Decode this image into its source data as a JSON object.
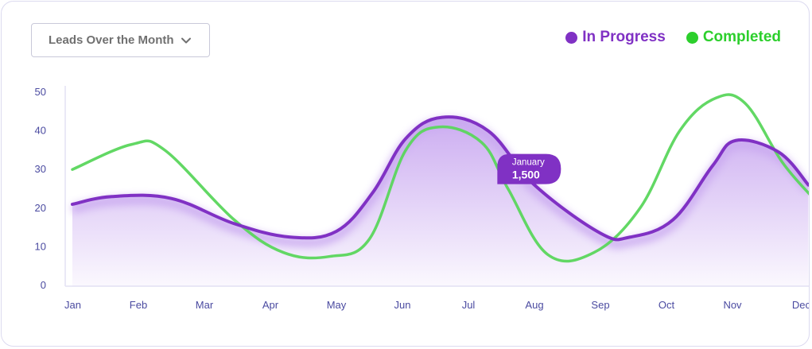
{
  "header": {
    "dropdown_label": "Leads Over the Month"
  },
  "colors": {
    "in_progress": "#8031c4",
    "completed": "#5ad65c",
    "legend_completed_text": "#2ccf2c",
    "axis_text": "#4a4aa0",
    "fill": "#c9a8f0"
  },
  "icons": {
    "dropdown": "chevron-down-icon"
  },
  "chart_data": {
    "type": "line",
    "categories": [
      "Jan",
      "Feb",
      "Mar",
      "Apr",
      "May",
      "Jun",
      "Jul",
      "Aug",
      "Sep",
      "Oct",
      "Nov",
      "Dec"
    ],
    "yticks": [
      "0",
      "10",
      "20",
      "30",
      "40",
      "50"
    ],
    "ylim": [
      0,
      50
    ],
    "legend_position": "top-right",
    "series": [
      {
        "name": "In Progress",
        "color": "#8031c4",
        "filled": true,
        "x": [
          0,
          0.6,
          1.5,
          2.45,
          3.3,
          4.0,
          4.55,
          5.05,
          5.6,
          6.3,
          7.0,
          8.0,
          8.45,
          9.1,
          9.7,
          10.05,
          10.7,
          11.15
        ],
        "y": [
          21,
          23,
          22.5,
          16,
          12.5,
          14,
          24,
          38,
          43.5,
          40,
          26,
          13.5,
          12.5,
          17,
          31,
          37.5,
          34.5,
          26
        ]
      },
      {
        "name": "Completed",
        "color": "#5ad65c",
        "filled": false,
        "x": [
          0,
          0.9,
          1.4,
          2.45,
          3.2,
          3.9,
          4.5,
          5.05,
          5.55,
          6.2,
          6.6,
          7.2,
          7.9,
          8.6,
          9.2,
          9.75,
          10.2,
          10.75,
          11.2
        ],
        "y": [
          30,
          36.5,
          35,
          17,
          8.5,
          7.5,
          12,
          35,
          41,
          37,
          25,
          8,
          8.5,
          20,
          40,
          48.5,
          47,
          32,
          23
        ]
      }
    ],
    "tooltip": {
      "title": "January",
      "value": "1,500",
      "anchor_x": 6.45,
      "anchor_y": 26
    }
  }
}
